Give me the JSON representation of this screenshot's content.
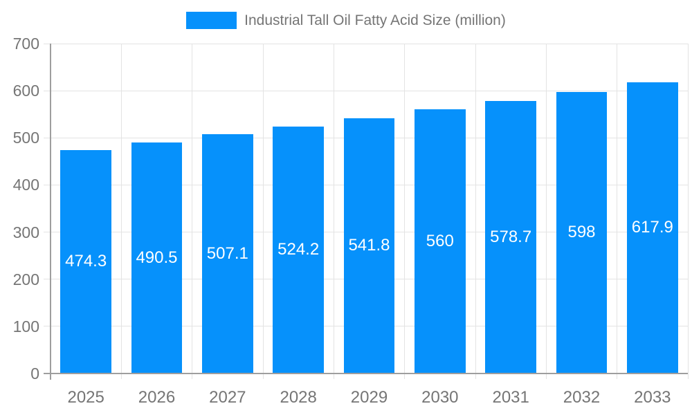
{
  "legend": {
    "label": "Industrial Tall Oil Fatty Acid Size (million)"
  },
  "colors": {
    "bar": "#0691FB",
    "bar_label": "#FFFFFF",
    "axis_line": "#9E9E9E",
    "gridline": "#E3E3E3",
    "tick_label": "#757575",
    "legend_text": "#757575",
    "background": "#FFFFFF"
  },
  "chart_data": {
    "type": "bar",
    "title": "Industrial Tall Oil Fatty Acid Size (million)",
    "categories": [
      "2025",
      "2026",
      "2027",
      "2028",
      "2029",
      "2030",
      "2031",
      "2032",
      "2033"
    ],
    "values": [
      474.3,
      490.5,
      507.1,
      524.2,
      541.8,
      560,
      578.7,
      598,
      617.9
    ],
    "series": [
      {
        "name": "Industrial Tall Oil Fatty Acid Size (million)",
        "values": [
          474.3,
          490.5,
          507.1,
          524.2,
          541.8,
          560,
          578.7,
          598,
          617.9
        ]
      }
    ],
    "xlabel": "",
    "ylabel": "",
    "ylim": [
      0,
      700
    ],
    "yticks": [
      0,
      100,
      200,
      300,
      400,
      500,
      600,
      700
    ],
    "grid": "on",
    "legend_position": "top",
    "bar_label_position": "center"
  }
}
